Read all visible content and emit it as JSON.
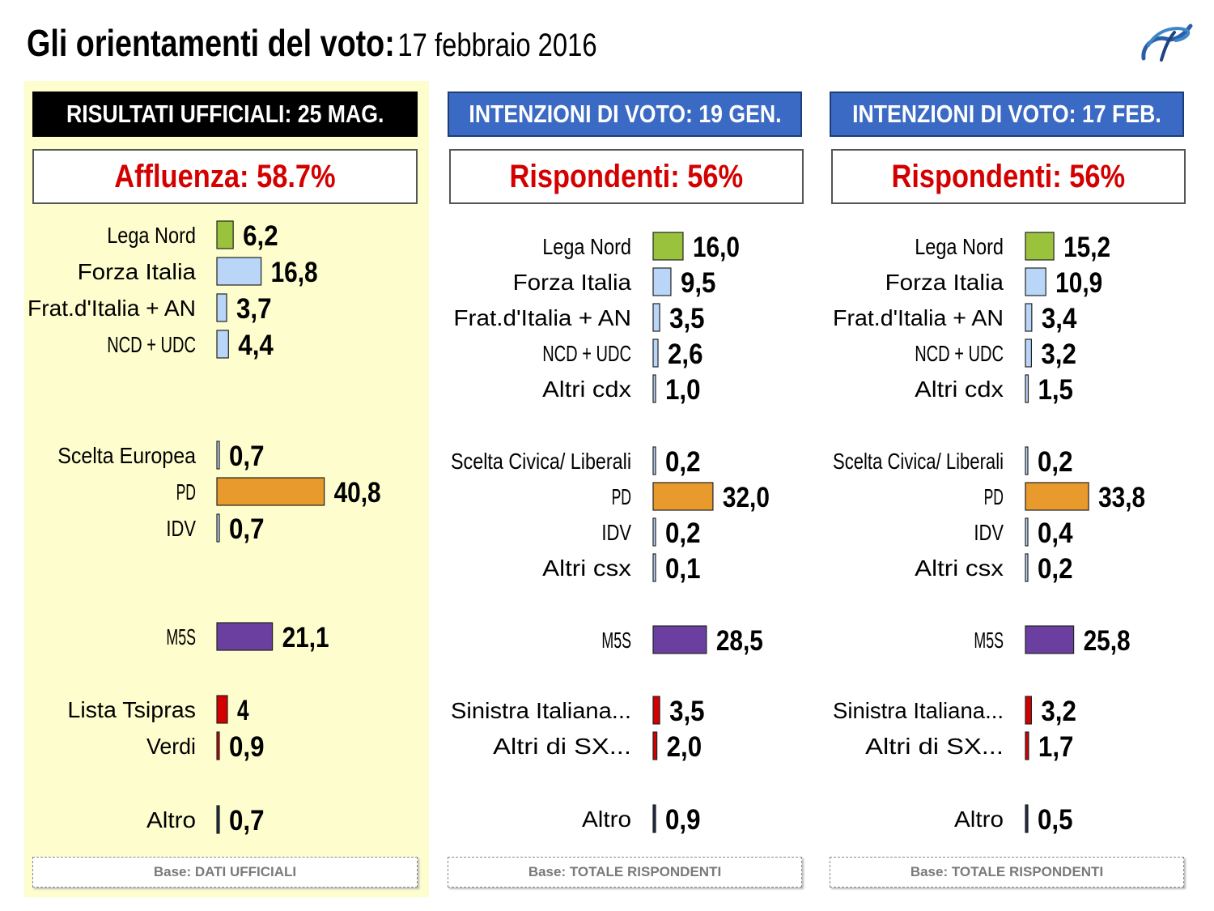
{
  "title": {
    "main": "Gli orientamenti del voto:",
    "date": "17 febbraio 2016"
  },
  "logo": {
    "icon": "swirl-logo"
  },
  "colors": {
    "lega": "#9bc23c",
    "cdx": "#b9d5f7",
    "pd": "#e89a2d",
    "m5s": "#6b3fa0",
    "sx": "#d40000",
    "altro": "#1d2b4a",
    "header_blue": "#3b6ac4",
    "highlight": "#d40000"
  },
  "panels": [
    {
      "header": "RISULTATI UFFICIALI:  25 MAG.",
      "subtitle": "Affluenza: 58.7%",
      "base": "Base: DATI UFFICIALI"
    },
    {
      "header": "INTENZIONI DI VOTO: 19 GEN.",
      "subtitle": "Rispondenti: 56%",
      "base": "Base: TOTALE RISPONDENTI"
    },
    {
      "header": "INTENZIONI DI VOTO: 17 FEB.",
      "subtitle": "Rispondenti: 56%",
      "base": "Base: TOTALE RISPONDENTI"
    }
  ],
  "chart_data": [
    {
      "type": "bar",
      "title": "RISULTATI UFFICIALI:  25 MAG.",
      "orientation": "horizontal",
      "categories": [
        "Lega Nord",
        "Forza Italia",
        "Frat.d'Italia + AN",
        "NCD + UDC",
        "Scelta Europea",
        "PD",
        "IDV",
        "M5S",
        "Lista Tsipras",
        "Verdi",
        "Altro"
      ],
      "values": [
        6.2,
        16.8,
        3.7,
        4.4,
        0.7,
        40.8,
        0.7,
        21.1,
        4,
        0.9,
        0.7
      ],
      "value_labels": [
        "6,2",
        "16,8",
        "3,7",
        "4,4",
        "0,7",
        "40,8",
        "0,7",
        "21,1",
        "4",
        "0,9",
        "0,7"
      ],
      "color_keys": [
        "lega",
        "cdx",
        "cdx",
        "cdx",
        "cdx",
        "pd",
        "cdx",
        "m5s",
        "sx",
        "sx",
        "altro"
      ],
      "groups": [
        0,
        0,
        0,
        0,
        1,
        1,
        1,
        2,
        3,
        3,
        4
      ]
    },
    {
      "type": "bar",
      "title": "INTENZIONI DI VOTO: 19 GEN.",
      "orientation": "horizontal",
      "categories": [
        "Lega Nord",
        "Forza Italia",
        "Frat.d'Italia + AN",
        "NCD + UDC",
        "Altri cdx",
        "Scelta Civica/ Liberali",
        "PD",
        "IDV",
        "Altri csx",
        "M5S",
        "Sinistra Italiana...",
        "Altri di SX...",
        "Altro"
      ],
      "values": [
        16.0,
        9.5,
        3.5,
        2.6,
        1.0,
        0.2,
        32.0,
        0.2,
        0.1,
        28.5,
        3.5,
        2.0,
        0.9
      ],
      "value_labels": [
        "16,0",
        "9,5",
        "3,5",
        "2,6",
        "1,0",
        "0,2",
        "32,0",
        "0,2",
        "0,1",
        "28,5",
        "3,5",
        "2,0",
        "0,9"
      ],
      "color_keys": [
        "lega",
        "cdx",
        "cdx",
        "cdx",
        "cdx",
        "cdx",
        "pd",
        "cdx",
        "cdx",
        "m5s",
        "sx",
        "sx",
        "altro"
      ],
      "groups": [
        0,
        0,
        0,
        0,
        0,
        1,
        1,
        1,
        1,
        2,
        3,
        3,
        4
      ]
    },
    {
      "type": "bar",
      "title": "INTENZIONI DI VOTO: 17 FEB.",
      "orientation": "horizontal",
      "categories": [
        "Lega Nord",
        "Forza Italia",
        "Frat.d'Italia + AN",
        "NCD + UDC",
        "Altri cdx",
        "Scelta Civica/ Liberali",
        "PD",
        "IDV",
        "Altri csx",
        "M5S",
        "Sinistra Italiana...",
        "Altri di SX...",
        "Altro"
      ],
      "values": [
        15.2,
        10.9,
        3.4,
        3.2,
        1.5,
        0.2,
        33.8,
        0.4,
        0.2,
        25.8,
        3.2,
        1.7,
        0.5
      ],
      "value_labels": [
        "15,2",
        "10,9",
        "3,4",
        "3,2",
        "1,5",
        "0,2",
        "33,8",
        "0,4",
        "0,2",
        "25,8",
        "3,2",
        "1,7",
        "0,5"
      ],
      "color_keys": [
        "lega",
        "cdx",
        "cdx",
        "cdx",
        "cdx",
        "cdx",
        "pd",
        "cdx",
        "cdx",
        "m5s",
        "sx",
        "sx",
        "altro"
      ],
      "groups": [
        0,
        0,
        0,
        0,
        0,
        1,
        1,
        1,
        1,
        2,
        3,
        3,
        4
      ]
    }
  ]
}
